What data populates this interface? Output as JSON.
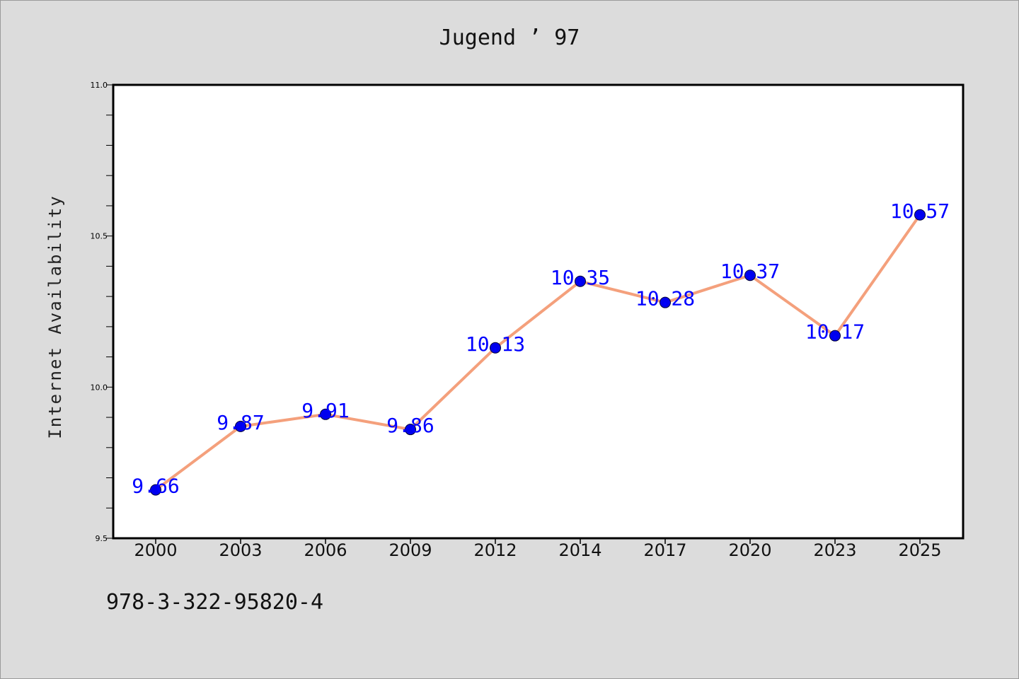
{
  "colors": {
    "background": "#dcdcdc",
    "plot_background": "#ffffff",
    "line": "#f4a07c",
    "marker": "#0000ee",
    "data_label": "#0000ff",
    "axis": "#000000"
  },
  "footer_text": "978-3-322-95820-4",
  "chart_data": {
    "type": "line",
    "title": "Jugend ’ 97",
    "xlabel": "",
    "ylabel": "Internet Availability",
    "categories": [
      "2000",
      "2003",
      "2006",
      "2009",
      "2012",
      "2014",
      "2017",
      "2020",
      "2023",
      "2025"
    ],
    "series": [
      {
        "values": [
          9.66,
          9.87,
          9.91,
          9.86,
          10.13,
          10.35,
          10.28,
          10.37,
          10.17,
          10.57
        ],
        "data_labels": [
          "9.66",
          "9.87",
          "9.91",
          "9.86",
          "10.13",
          "10.35",
          "10.28",
          "10.37",
          "10.17",
          "10.57"
        ]
      }
    ],
    "ylim": [
      9.5,
      11.0
    ],
    "y_ticks": [
      "9.5",
      "10.0",
      "10.5",
      "11.0"
    ],
    "y_minor_step": 0.1,
    "grid": false,
    "legend": "none"
  }
}
